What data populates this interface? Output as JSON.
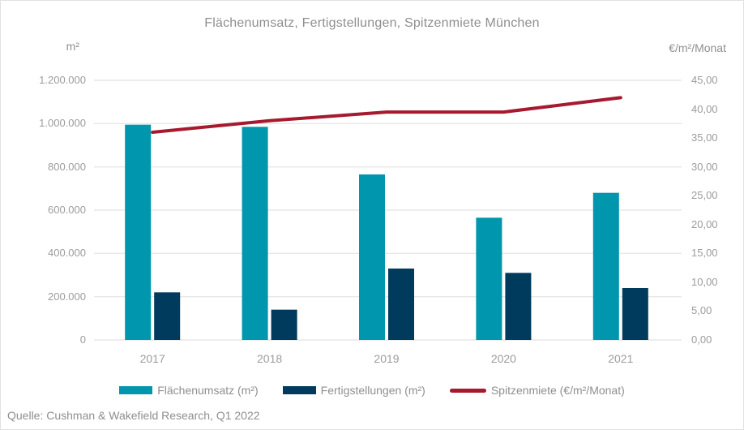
{
  "chart_data": {
    "type": "bar+line",
    "title": "Flächenumsatz, Fertigstellungen, Spitzenmiete München",
    "categories": [
      "2017",
      "2018",
      "2019",
      "2020",
      "2021"
    ],
    "series": [
      {
        "name": "Flächenumsatz (m²)",
        "type": "bar",
        "axis": "left",
        "color": "#0096AE",
        "values": [
          995000,
          985000,
          765000,
          565000,
          680000
        ]
      },
      {
        "name": "Fertigstellungen (m²)",
        "type": "bar",
        "axis": "left",
        "color": "#003A5D",
        "values": [
          220000,
          140000,
          330000,
          310000,
          240000
        ]
      },
      {
        "name": "Spitzenmiete (€/m²/Monat)",
        "type": "line",
        "axis": "right",
        "color": "#A6192E",
        "values": [
          36.0,
          38.0,
          39.5,
          39.5,
          42.0
        ]
      }
    ],
    "left_axis": {
      "unit": "m²",
      "min": 0,
      "max": 1200000,
      "step": 200000,
      "tick_labels": [
        "1.200.000",
        "1.000.000",
        "800.000",
        "600.000",
        "400.000",
        "200.000",
        "0"
      ]
    },
    "right_axis": {
      "unit": "€/m²/Monat",
      "min": 0,
      "max": 45,
      "step": 5,
      "tick_labels": [
        "45,00",
        "40,00",
        "35,00",
        "30,00",
        "25,00",
        "20,00",
        "15,00",
        "10,00",
        "5,00",
        "0,00"
      ]
    },
    "grid": "horizontal",
    "legend_position": "bottom"
  },
  "source_note": "Quelle: Cushman & Wakefield Research, Q1 2022",
  "styles": {
    "background": "#FFFFFF",
    "border_color": "#E2E2E2",
    "grid_color": "#E7E7E7",
    "title_color": "#8F8F8F",
    "tick_color": "#9C9C9C"
  }
}
